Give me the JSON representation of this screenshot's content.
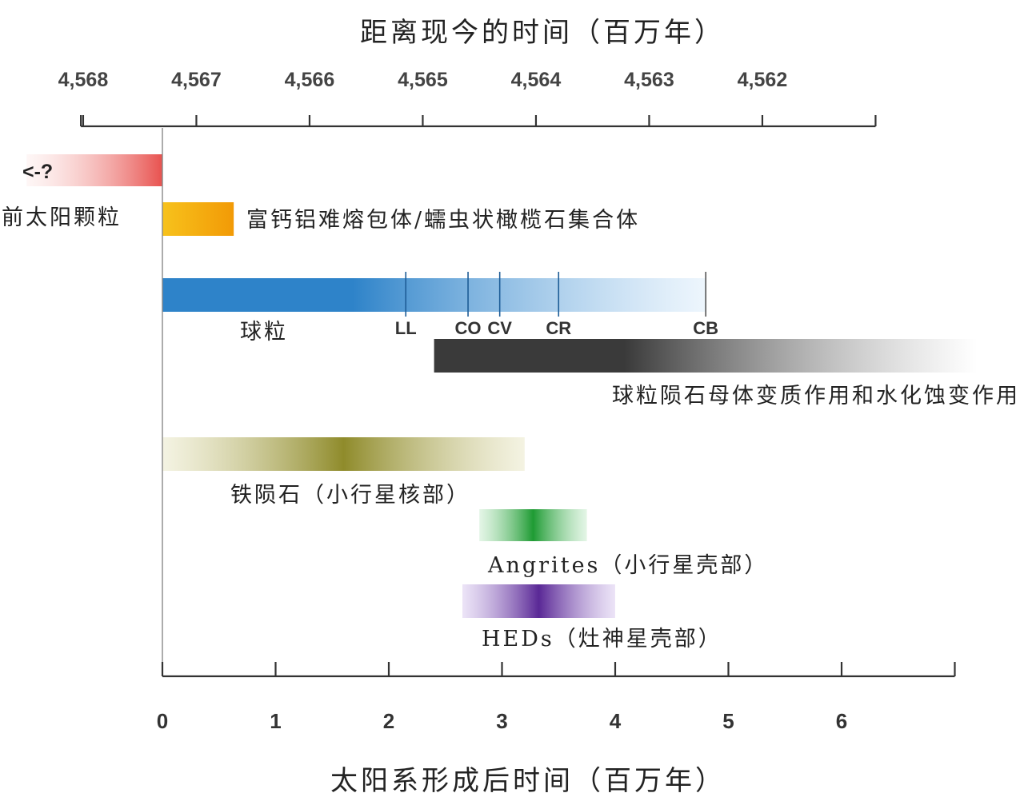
{
  "chart_data": {
    "type": "timeline",
    "top_axis": {
      "title": "距离现今的时间（百万年）",
      "tick_labels": [
        "4,568",
        "4,567",
        "4,566",
        "4,565",
        "4,564",
        "4,563",
        "4,562"
      ],
      "tick_values": [
        -0.7,
        0.3,
        1.3,
        2.3,
        3.3,
        4.3,
        5.3
      ]
    },
    "bottom_axis": {
      "title": "太阳系形成后时间（百万年）",
      "tick_labels": [
        "0",
        "1",
        "2",
        "3",
        "4",
        "5",
        "6"
      ],
      "tick_values": [
        0,
        1,
        2,
        3,
        4,
        5,
        6
      ],
      "range": [
        0,
        7
      ]
    },
    "bars": [
      {
        "label": "前太阳颗粒",
        "start": -1.2,
        "end": 0.0,
        "color_from": "#fbe3e1",
        "color_to": "#e8524f",
        "marker_text": "<-?"
      },
      {
        "label": "富钙铝难熔包体/蠕虫状橄榄石集合体",
        "start": 0.0,
        "end": 0.63,
        "color_from": "#f7c21c",
        "color_to": "#f29a06"
      },
      {
        "label": "球粒",
        "start": 0.0,
        "end": 4.8,
        "color_from": "#2e83c9",
        "color_to": "#e2f0fc"
      },
      {
        "label": "球粒陨石母体变质作用和水化蚀变作用",
        "start": 2.4,
        "end": 7.2,
        "color_from": "#3a3a3a",
        "color_to": "#ffffff"
      },
      {
        "label": "铁陨石（小行星核部）",
        "start": 0.0,
        "end": 3.2,
        "color_from": "#8f8b2b",
        "color_to": "#e9e7c6"
      },
      {
        "label": "Angrites（小行星壳部）",
        "start": 2.8,
        "end": 3.75,
        "color_from": "#1e9b33",
        "color_to": "#c8eccd"
      },
      {
        "label": "HEDs（灶神星壳部）",
        "start": 2.65,
        "end": 4.0,
        "color_from": "#5a2896",
        "color_to": "#d9c9ef"
      }
    ],
    "chondrule_markers": [
      {
        "label": "LL",
        "value": 2.15
      },
      {
        "label": "CO",
        "value": 2.7
      },
      {
        "label": "CV",
        "value": 2.98
      },
      {
        "label": "CR",
        "value": 3.5
      },
      {
        "label": "CB",
        "value": 4.8
      }
    ]
  }
}
